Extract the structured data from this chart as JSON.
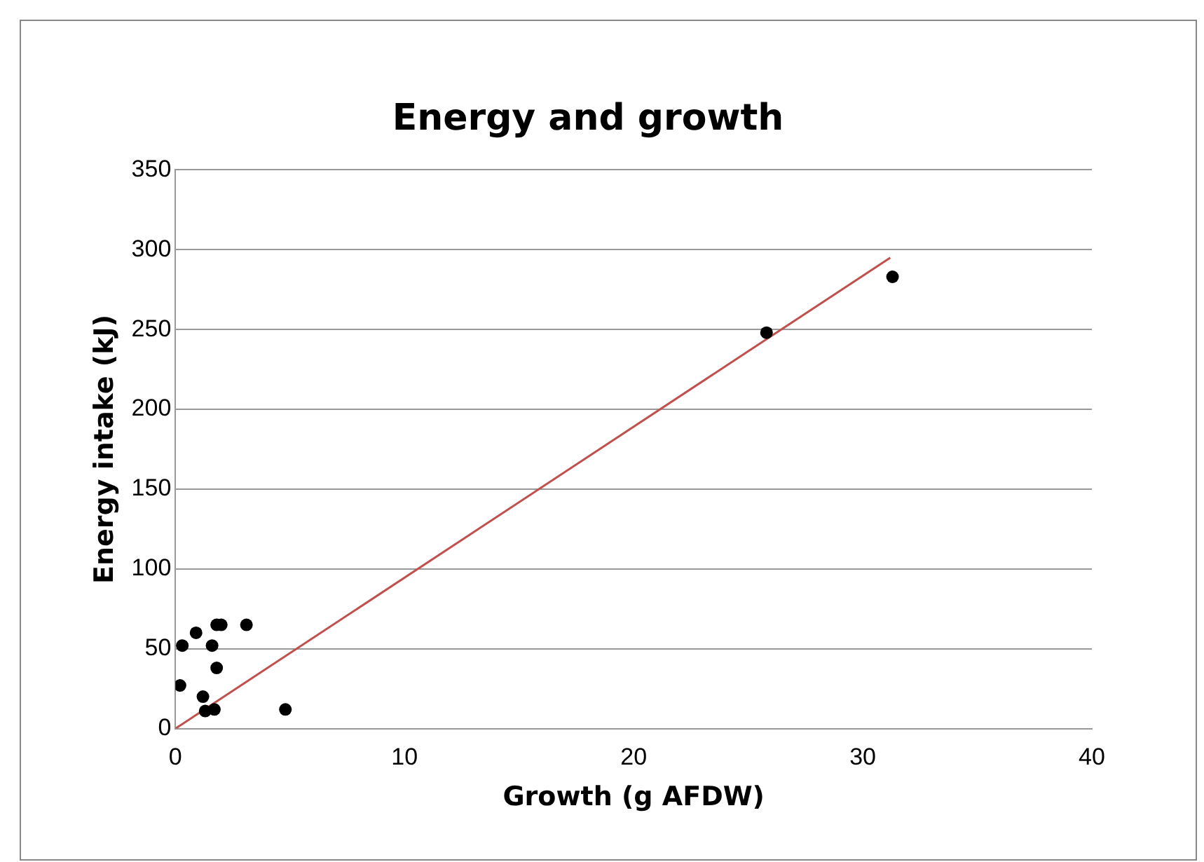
{
  "chart_data": {
    "type": "scatter",
    "title": "Energy and growth",
    "xlabel": "Growth (g AFDW)",
    "ylabel": "Energy intake (kJ)",
    "xlim": [
      0,
      40
    ],
    "xticks": [
      0,
      10,
      20,
      30,
      40
    ],
    "ylim": [
      0,
      350
    ],
    "yticks": [
      0,
      50,
      100,
      150,
      200,
      250,
      300,
      350
    ],
    "grid": "y",
    "legend": false,
    "marker": "circle",
    "series": [
      {
        "type": "scatter",
        "color": "#000000",
        "x": [
          0.3,
          0.9,
          1.8,
          2.0,
          3.1,
          1.6,
          1.8,
          0.2,
          1.2,
          1.3,
          1.7,
          4.8,
          25.8,
          31.3
        ],
        "values": [
          52,
          60,
          65,
          65,
          65,
          52,
          38,
          27,
          20,
          11,
          12,
          12,
          248,
          283
        ]
      },
      {
        "type": "line",
        "color": "#c0504d",
        "marker": "none",
        "x": [
          0,
          31.2
        ],
        "values": [
          0,
          295
        ]
      }
    ]
  }
}
